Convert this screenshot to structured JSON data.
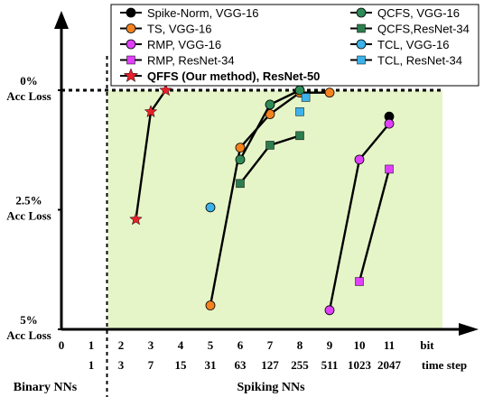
{
  "chart_data": {
    "type": "scatter",
    "plot_background": "#e6f5c8",
    "y_axis": {
      "unit": "Acc Loss",
      "ticks": [
        {
          "value": 0,
          "label_top": "0%",
          "label_bottom": "Acc Loss"
        },
        {
          "value": 2.5,
          "label_top": "2.5%",
          "label_bottom": "Acc Loss"
        },
        {
          "value": 5,
          "label_top": "5%",
          "label_bottom": "Acc Loss"
        }
      ],
      "range": [
        0,
        5
      ]
    },
    "x_axis": {
      "bit_ticks": [
        "0",
        "1",
        "2",
        "3",
        "4",
        "5",
        "6",
        "7",
        "8",
        "9",
        "10",
        "11"
      ],
      "time_step_ticks": [
        "1",
        "3",
        "7",
        "15",
        "31",
        "63",
        "127",
        "255",
        "511",
        "1023",
        "2047"
      ],
      "bit_label": "bit",
      "time_step_label": "time step",
      "range": [
        0,
        12
      ]
    },
    "regions": {
      "binary_label": "Binary NNs",
      "spiking_label": "Spiking NNs",
      "divider_x": 1.5
    },
    "series": [
      {
        "name": "Spike-Norm, VGG-16",
        "marker": "circle",
        "color": "#000000",
        "connect": false,
        "points": [
          {
            "x": 11,
            "y": 0.55
          }
        ]
      },
      {
        "name": "TS, VGG-16",
        "marker": "circle",
        "color": "#f5821f",
        "connect": true,
        "points": [
          {
            "x": 5,
            "y": 4.5
          },
          {
            "x": 6,
            "y": 1.2
          },
          {
            "x": 7,
            "y": 0.5
          },
          {
            "x": 8,
            "y": 0.05
          },
          {
            "x": 9,
            "y": 0.05
          }
        ]
      },
      {
        "name": "RMP, VGG-16",
        "marker": "circle",
        "color": "#e040fb",
        "connect": true,
        "points": [
          {
            "x": 9,
            "y": 4.6
          },
          {
            "x": 10,
            "y": 1.45
          },
          {
            "x": 11,
            "y": 0.7
          }
        ]
      },
      {
        "name": "RMP, ResNet-34",
        "marker": "square",
        "color": "#e040fb",
        "connect": true,
        "points": [
          {
            "x": 10,
            "y": 4.0
          },
          {
            "x": 11,
            "y": 1.65
          }
        ]
      },
      {
        "name": "QCFS, VGG-16",
        "marker": "circle",
        "color": "#2e8b57",
        "connect": true,
        "points": [
          {
            "x": 6,
            "y": 1.45
          },
          {
            "x": 7,
            "y": 0.3
          },
          {
            "x": 8,
            "y": 0.0
          }
        ]
      },
      {
        "name": "QCFS,ResNet-34",
        "marker": "square",
        "color": "#2e7d4f",
        "connect": true,
        "points": [
          {
            "x": 6,
            "y": 1.95
          },
          {
            "x": 7,
            "y": 1.15
          },
          {
            "x": 8,
            "y": 0.95
          }
        ]
      },
      {
        "name": "TCL, VGG-16",
        "marker": "circle",
        "color": "#3db2ea",
        "connect": false,
        "points": [
          {
            "x": 5,
            "y": 2.45
          }
        ]
      },
      {
        "name": "TCL, ResNet-34",
        "marker": "square",
        "color": "#3db2ea",
        "connect": false,
        "points": [
          {
            "x": 8,
            "y": 0.45
          },
          {
            "x": 8.2,
            "y": 0.15
          }
        ]
      },
      {
        "name": "QFFS (Our method), ResNet-50",
        "marker": "star",
        "color": "#e8202a",
        "connect": true,
        "highlight": true,
        "points": [
          {
            "x": 2.5,
            "y": 2.7
          },
          {
            "x": 3,
            "y": 0.45
          },
          {
            "x": 3.5,
            "y": 0.0
          }
        ]
      }
    ],
    "legend": {
      "placement": "top"
    }
  }
}
